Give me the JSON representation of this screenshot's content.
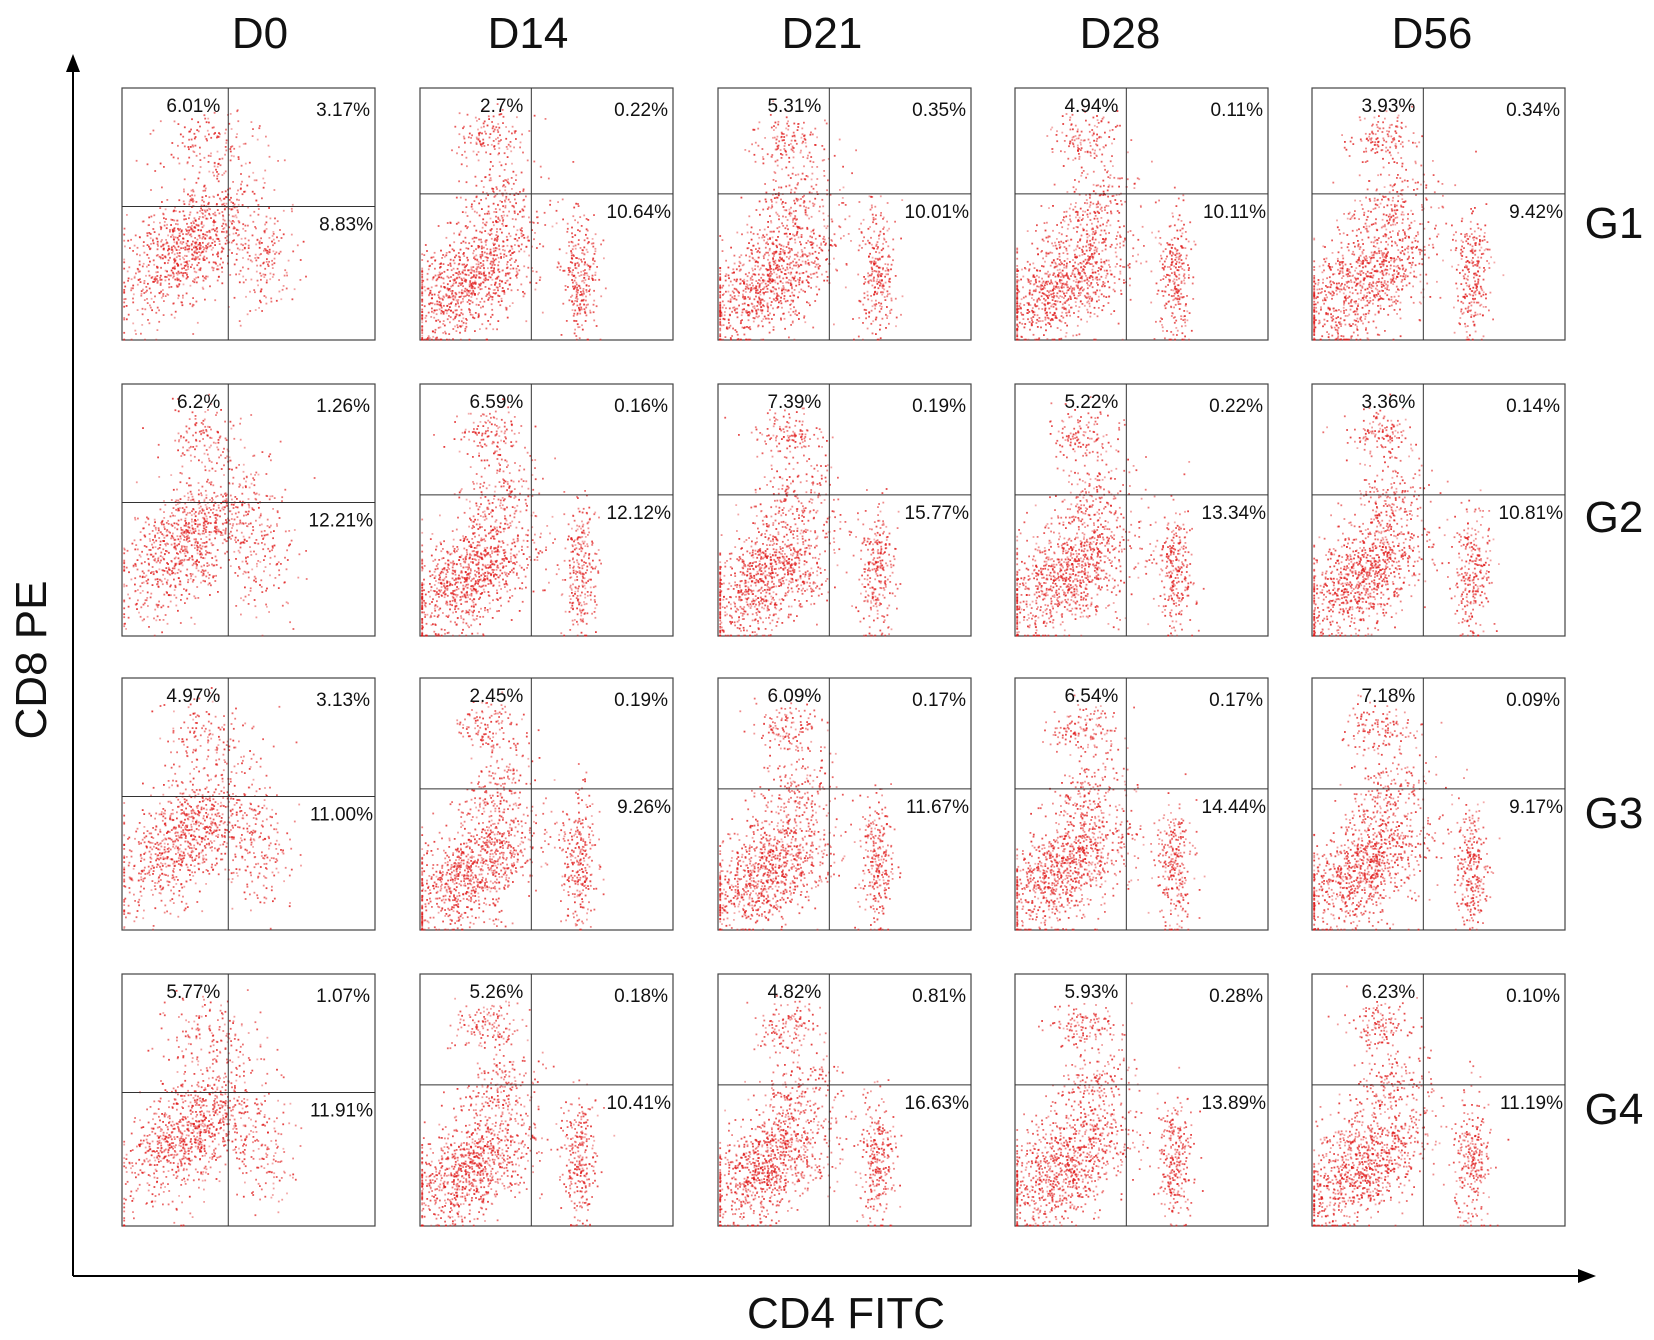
{
  "chart_data": {
    "type": "scatter",
    "title": "",
    "xlabel": "CD4 FITC",
    "ylabel": "CD8 PE",
    "columns": [
      "D0",
      "D14",
      "D21",
      "D28",
      "D56"
    ],
    "rows": [
      "G1",
      "G2",
      "G3",
      "G4"
    ],
    "point_color": "#e01a1a",
    "quadrant_order": [
      "upper_left",
      "upper_right",
      "lower_right"
    ],
    "panels": [
      [
        {
          "column": "D0",
          "row": "G1",
          "upper_left": "6.01%",
          "upper_right": "3.17%",
          "lower_right": "8.83%"
        },
        {
          "column": "D14",
          "row": "G1",
          "upper_left": "2.7%",
          "upper_right": "0.22%",
          "lower_right": "10.64%"
        },
        {
          "column": "D21",
          "row": "G1",
          "upper_left": "5.31%",
          "upper_right": "0.35%",
          "lower_right": "10.01%"
        },
        {
          "column": "D28",
          "row": "G1",
          "upper_left": "4.94%",
          "upper_right": "0.11%",
          "lower_right": "10.11%"
        },
        {
          "column": "D56",
          "row": "G1",
          "upper_left": "3.93%",
          "upper_right": "0.34%",
          "lower_right": "9.42%"
        }
      ],
      [
        {
          "column": "D0",
          "row": "G2",
          "upper_left": "6.2%",
          "upper_right": "1.26%",
          "lower_right": "12.21%"
        },
        {
          "column": "D14",
          "row": "G2",
          "upper_left": "6.59%",
          "upper_right": "0.16%",
          "lower_right": "12.12%"
        },
        {
          "column": "D21",
          "row": "G2",
          "upper_left": "7.39%",
          "upper_right": "0.19%",
          "lower_right": "15.77%"
        },
        {
          "column": "D28",
          "row": "G2",
          "upper_left": "5.22%",
          "upper_right": "0.22%",
          "lower_right": "13.34%"
        },
        {
          "column": "D56",
          "row": "G2",
          "upper_left": "3.36%",
          "upper_right": "0.14%",
          "lower_right": "10.81%"
        }
      ],
      [
        {
          "column": "D0",
          "row": "G3",
          "upper_left": "4.97%",
          "upper_right": "3.13%",
          "lower_right": "11.00%"
        },
        {
          "column": "D14",
          "row": "G3",
          "upper_left": "2.45%",
          "upper_right": "0.19%",
          "lower_right": "9.26%"
        },
        {
          "column": "D21",
          "row": "G3",
          "upper_left": "6.09%",
          "upper_right": "0.17%",
          "lower_right": "11.67%"
        },
        {
          "column": "D28",
          "row": "G3",
          "upper_left": "6.54%",
          "upper_right": "0.17%",
          "lower_right": "14.44%"
        },
        {
          "column": "D56",
          "row": "G3",
          "upper_left": "7.18%",
          "upper_right": "0.09%",
          "lower_right": "9.17%"
        }
      ],
      [
        {
          "column": "D0",
          "row": "G4",
          "upper_left": "5.77%",
          "upper_right": "1.07%",
          "lower_right": "11.91%"
        },
        {
          "column": "D14",
          "row": "G4",
          "upper_left": "5.26%",
          "upper_right": "0.18%",
          "lower_right": "10.41%"
        },
        {
          "column": "D21",
          "row": "G4",
          "upper_left": "4.82%",
          "upper_right": "0.81%",
          "lower_right": "16.63%"
        },
        {
          "column": "D28",
          "row": "G4",
          "upper_left": "5.93%",
          "upper_right": "0.28%",
          "lower_right": "13.89%"
        },
        {
          "column": "D56",
          "row": "G4",
          "upper_left": "6.23%",
          "upper_right": "0.10%",
          "lower_right": "11.19%"
        }
      ]
    ]
  }
}
